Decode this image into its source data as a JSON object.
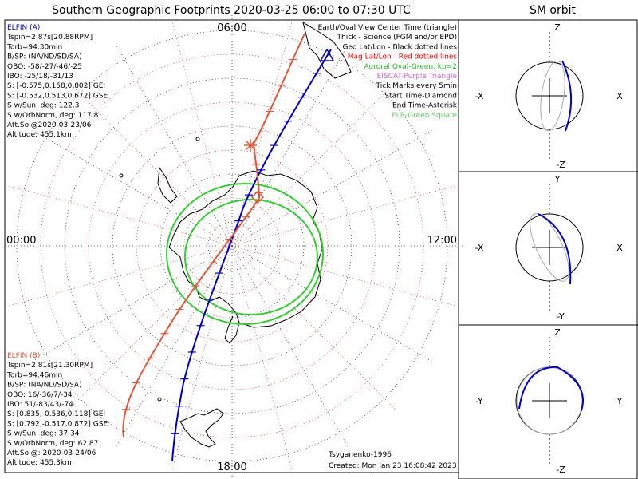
{
  "title": "Southern Geographic Footprints 2020-03-25 06:00 to 07:30 UTC",
  "orbit_title": "SM orbit",
  "hour_labels": {
    "top": "06:00",
    "left": "00:00",
    "right": "12:00",
    "bottom": "18:00"
  },
  "elfin_a": {
    "name": "ELFIN (A)",
    "lines": [
      "Tspin=2.87s[20.88RPM]",
      "Torb=94.30min",
      "B/SP: (NA/ND/SD/SA)",
      "OBO: -58/-27/-46/-25",
      "IBO: -25/18/-31/13",
      "S: [-0.575,0.158,0.802] GEI",
      "S: [-0.532,0.513,0.672] GSE",
      "S w/Sun, deg: 122.3",
      "S w/OrbNorm, deg: 117.8",
      "Att.Sol@2020-03-23/06",
      "Altitude: 455.1km"
    ],
    "color": "#0000cc"
  },
  "elfin_b": {
    "name": "ELFIN (B)",
    "lines": [
      "Tspin=2.81s[21.30RPM]",
      "Torb=94.46min",
      "B/SP: (NA/ND/SD/SA)",
      "OBO: 16/-36/7/-34",
      "IBO: 51/-83/43/-74",
      "S: [0.835,-0.536,0.118] GEI",
      "S: [0.792,-0.517,0.872] GSE",
      "S w/Sun, deg: 37.34",
      "S w/OrbNorm, deg: 62.87",
      "Att.Sol@: 2020-03-24/06",
      "Altitude: 455.3km"
    ],
    "color": "#e0573a"
  },
  "legend": [
    {
      "text": "Earth/Oval View Center Time (triangle)",
      "color": "#000000"
    },
    {
      "text": "Thick - Science (FGM and/or EPD)",
      "color": "#000000"
    },
    {
      "text": "Geo Lat/Lon - Black dotted lines",
      "color": "#000000"
    },
    {
      "text": "Mag Lat/Lon - Red dotted lines",
      "color": "#ff0000"
    },
    {
      "text": "Auroral Oval-Green, kp=2",
      "color": "#22bb22"
    },
    {
      "text": "EISCAT-Purple Triangle",
      "color": "#cc66cc"
    },
    {
      "text": "Tick Marks every 5min",
      "color": "#000000"
    },
    {
      "text": "Start Time-Diamond",
      "color": "#000000"
    },
    {
      "text": "End Time-Asterisk",
      "color": "#000000"
    },
    {
      "text": "FLR-Green Square",
      "color": "#66cc66"
    }
  ],
  "credits": {
    "author": "Tsyganenko-1996",
    "created": "Created: Mon Jan 23 16:08:42 2023"
  },
  "orbit_panels": [
    {
      "top": "Z",
      "bottom": "-Z",
      "left": "-X",
      "right": "X"
    },
    {
      "top": "Y",
      "bottom": "-Y",
      "left": "-X",
      "right": "X"
    },
    {
      "top": "Z",
      "bottom": "-Z",
      "left": "-Y",
      "right": "Y"
    }
  ],
  "chart_data": [
    {
      "type": "polar-map",
      "hour_labels": [
        "06:00",
        "00:00",
        "12:00",
        "18:00"
      ],
      "series": [
        {
          "name": "ELFIN (A)",
          "color": "#0000cc"
        },
        {
          "name": "ELFIN (B)",
          "color": "#e0573a"
        }
      ]
    },
    {
      "type": "line",
      "axes": [
        "X",
        "Z"
      ]
    },
    {
      "type": "line",
      "axes": [
        "X",
        "Y"
      ]
    },
    {
      "type": "line",
      "axes": [
        "Y",
        "Z"
      ]
    }
  ]
}
